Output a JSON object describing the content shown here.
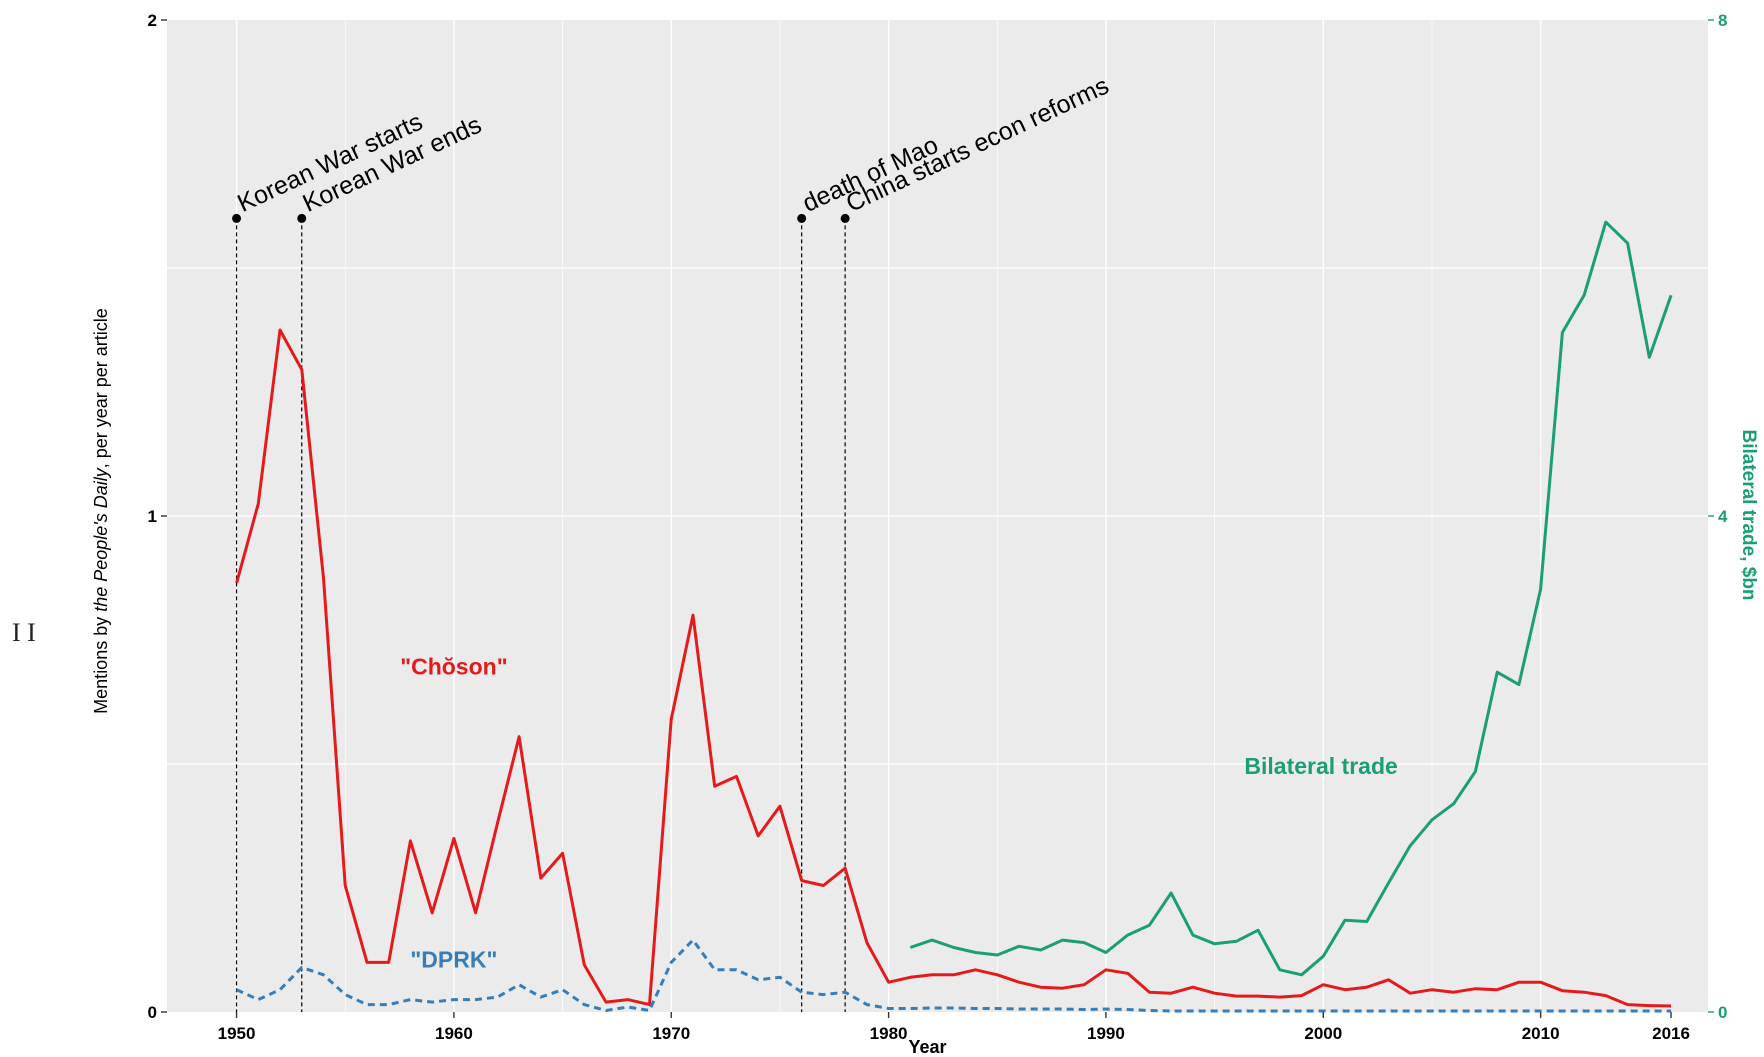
{
  "chart_data": {
    "type": "line",
    "x_label": "Year",
    "y_label_parts": [
      "Mentions by ",
      "the People's Daily",
      ", per year per article"
    ],
    "y2_label": "Bilateral trade, $bn",
    "xlim": [
      1946.8,
      2017.7
    ],
    "ylim": [
      0,
      2
    ],
    "y2lim": [
      0,
      8
    ],
    "x_ticks": [
      1950,
      1960,
      1970,
      1980,
      1990,
      2000,
      2010,
      2016
    ],
    "y_ticks": [
      0,
      1,
      2
    ],
    "y2_ticks": [
      0,
      4,
      8
    ],
    "grid": true,
    "colors": {
      "choson": "#e41a1c",
      "dprk": "#377eb8",
      "trade": "#1b9e77",
      "panel": "#ebebeb",
      "grid": "#ffffff"
    },
    "series": [
      {
        "key": "choson",
        "name": "\"Chŏson\"",
        "axis": "left",
        "dash": false,
        "x": [
          1950,
          1951,
          1952,
          1953,
          1954,
          1955,
          1956,
          1957,
          1958,
          1959,
          1960,
          1961,
          1962,
          1963,
          1964,
          1965,
          1966,
          1967,
          1968,
          1969,
          1970,
          1971,
          1972,
          1973,
          1974,
          1975,
          1976,
          1977,
          1978,
          1979,
          1980,
          1981,
          1982,
          1983,
          1984,
          1985,
          1986,
          1987,
          1988,
          1989,
          1990,
          1991,
          1992,
          1993,
          1994,
          1995,
          1996,
          1997,
          1998,
          1999,
          2000,
          2001,
          2002,
          2003,
          2004,
          2005,
          2006,
          2007,
          2008,
          2009,
          2010,
          2011,
          2012,
          2013,
          2014,
          2015,
          2016
        ],
        "values": [
          0.865,
          1.025,
          1.375,
          1.295,
          0.875,
          0.255,
          0.1,
          0.1,
          0.345,
          0.2,
          0.35,
          0.2,
          0.38,
          0.555,
          0.27,
          0.32,
          0.095,
          0.02,
          0.025,
          0.015,
          0.59,
          0.8,
          0.455,
          0.475,
          0.355,
          0.415,
          0.265,
          0.255,
          0.29,
          0.14,
          0.06,
          0.07,
          0.075,
          0.075,
          0.085,
          0.075,
          0.06,
          0.05,
          0.048,
          0.055,
          0.085,
          0.078,
          0.04,
          0.038,
          0.05,
          0.038,
          0.032,
          0.032,
          0.03,
          0.033,
          0.055,
          0.045,
          0.05,
          0.065,
          0.038,
          0.045,
          0.04,
          0.047,
          0.045,
          0.06,
          0.06,
          0.043,
          0.04,
          0.033,
          0.015,
          0.013,
          0.012
        ]
      },
      {
        "key": "dprk",
        "name": "\"DPRK\"",
        "axis": "left",
        "dash": true,
        "x": [
          1950,
          1951,
          1952,
          1953,
          1954,
          1955,
          1956,
          1957,
          1958,
          1959,
          1960,
          1961,
          1962,
          1963,
          1964,
          1965,
          1966,
          1967,
          1968,
          1969,
          1970,
          1971,
          1972,
          1973,
          1974,
          1975,
          1976,
          1977,
          1978,
          1979,
          1980,
          1981,
          1982,
          1983,
          1984,
          1985,
          1986,
          1987,
          1988,
          1989,
          1990,
          1991,
          1992,
          1993,
          1994,
          1995,
          1996,
          1997,
          1998,
          1999,
          2000,
          2001,
          2002,
          2003,
          2004,
          2005,
          2006,
          2007,
          2008,
          2009,
          2010,
          2011,
          2012,
          2013,
          2014,
          2015,
          2016
        ],
        "values": [
          0.045,
          0.025,
          0.045,
          0.09,
          0.075,
          0.035,
          0.015,
          0.015,
          0.025,
          0.02,
          0.025,
          0.025,
          0.03,
          0.055,
          0.03,
          0.045,
          0.015,
          0.003,
          0.01,
          0.003,
          0.1,
          0.145,
          0.085,
          0.085,
          0.065,
          0.07,
          0.04,
          0.035,
          0.04,
          0.015,
          0.007,
          0.007,
          0.008,
          0.008,
          0.007,
          0.007,
          0.006,
          0.006,
          0.006,
          0.005,
          0.006,
          0.005,
          0.003,
          0.002,
          0.002,
          0.002,
          0.002,
          0.002,
          0.002,
          0.002,
          0.002,
          0.002,
          0.002,
          0.002,
          0.002,
          0.002,
          0.002,
          0.002,
          0.002,
          0.002,
          0.002,
          0.002,
          0.002,
          0.002,
          0.002,
          0.002,
          0.002
        ]
      },
      {
        "key": "trade",
        "name": "Bilateral trade",
        "axis": "right",
        "dash": false,
        "x": [
          1981,
          1982,
          1983,
          1984,
          1985,
          1986,
          1987,
          1988,
          1989,
          1990,
          1991,
          1992,
          1993,
          1994,
          1995,
          1996,
          1997,
          1998,
          1999,
          2000,
          2001,
          2002,
          2003,
          2004,
          2005,
          2006,
          2007,
          2008,
          2009,
          2010,
          2011,
          2012,
          2013,
          2014,
          2015,
          2016
        ],
        "values": [
          0.52,
          0.58,
          0.52,
          0.48,
          0.46,
          0.53,
          0.5,
          0.58,
          0.56,
          0.48,
          0.62,
          0.7,
          0.96,
          0.62,
          0.55,
          0.57,
          0.66,
          0.34,
          0.3,
          0.45,
          0.74,
          0.73,
          1.04,
          1.34,
          1.55,
          1.68,
          1.94,
          2.74,
          2.64,
          3.41,
          5.48,
          5.78,
          6.37,
          6.2,
          5.28,
          5.78
        ]
      }
    ],
    "annotations": [
      {
        "year": 1950,
        "label": "Korean War starts"
      },
      {
        "year": 1953,
        "label": "Korean War ends"
      },
      {
        "year": 1976,
        "label": "death of Mao"
      },
      {
        "year": 1978,
        "label": "China starts econ reforms"
      }
    ],
    "annotation_level": 1.6
  },
  "side_mark": "I I"
}
